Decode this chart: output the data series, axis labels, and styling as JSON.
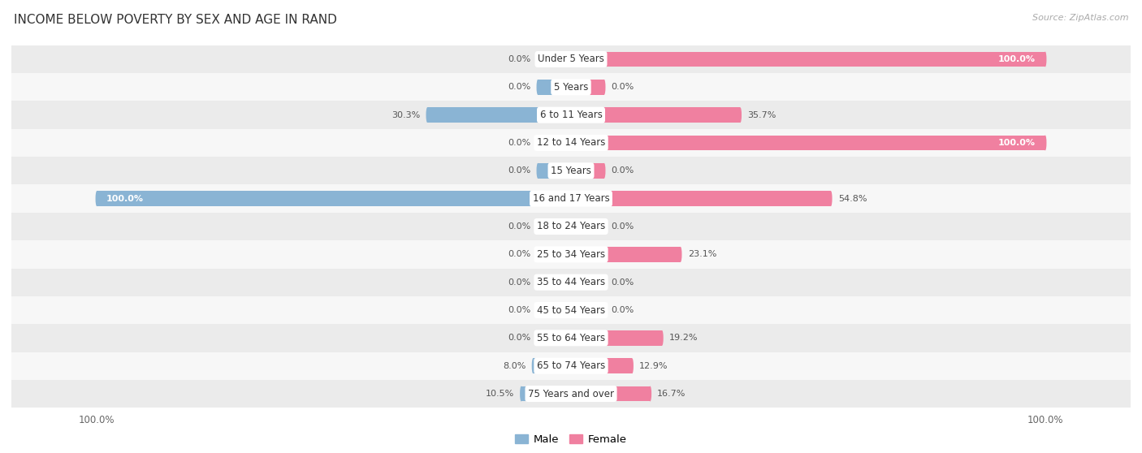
{
  "title": "INCOME BELOW POVERTY BY SEX AND AGE IN RAND",
  "source": "Source: ZipAtlas.com",
  "categories": [
    "Under 5 Years",
    "5 Years",
    "6 to 11 Years",
    "12 to 14 Years",
    "15 Years",
    "16 and 17 Years",
    "18 to 24 Years",
    "25 to 34 Years",
    "35 to 44 Years",
    "45 to 54 Years",
    "55 to 64 Years",
    "65 to 74 Years",
    "75 Years and over"
  ],
  "male": [
    0.0,
    0.0,
    30.3,
    0.0,
    0.0,
    100.0,
    0.0,
    0.0,
    0.0,
    0.0,
    0.0,
    8.0,
    10.5
  ],
  "female": [
    100.0,
    0.0,
    35.7,
    100.0,
    0.0,
    54.8,
    0.0,
    23.1,
    0.0,
    0.0,
    19.2,
    12.9,
    16.7
  ],
  "male_color": "#8ab4d4",
  "female_color": "#f080a0",
  "row_bg_odd": "#ebebeb",
  "row_bg_even": "#f7f7f7",
  "max_value": 100.0,
  "min_stub": 7.0,
  "bar_height": 0.55,
  "legend_male": "Male",
  "legend_female": "Female"
}
